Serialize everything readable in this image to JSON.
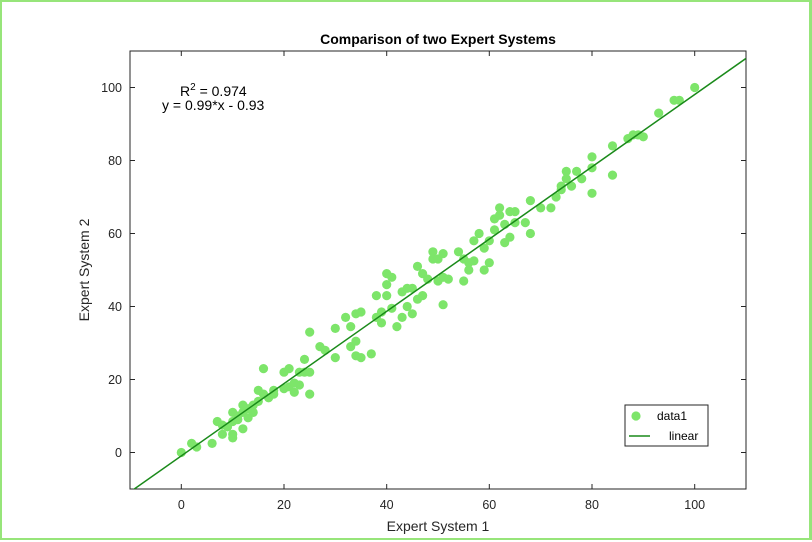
{
  "chart_data": {
    "type": "scatter",
    "title": "Comparison of two Expert Systems",
    "xlabel": "Expert System 1",
    "ylabel": "Expert System 2",
    "xlim": [
      -10,
      110
    ],
    "ylim": [
      -10,
      110
    ],
    "xticks": [
      0,
      20,
      40,
      60,
      80,
      100
    ],
    "yticks": [
      0,
      20,
      40,
      60,
      80,
      100
    ],
    "grid": false,
    "legend_placement": "bottom-right",
    "annotation": {
      "r2_prefix": "R",
      "r2_superscript": "2",
      "r2_value": " = 0.974",
      "equation": "y = 0.99*x - 0.93"
    },
    "series": [
      {
        "name": "data1",
        "type": "scatter",
        "color": "#7de56a",
        "points": [
          [
            0,
            0
          ],
          [
            2,
            2.5
          ],
          [
            3,
            1.5
          ],
          [
            6,
            2.5
          ],
          [
            7,
            8.5
          ],
          [
            8,
            5
          ],
          [
            8,
            7.5
          ],
          [
            9,
            7
          ],
          [
            10,
            4
          ],
          [
            10,
            5
          ],
          [
            10,
            8.5
          ],
          [
            10,
            11
          ],
          [
            11,
            9
          ],
          [
            11,
            10
          ],
          [
            12,
            6.5
          ],
          [
            12,
            11
          ],
          [
            12,
            13
          ],
          [
            13,
            9.5
          ],
          [
            13,
            12
          ],
          [
            14,
            11
          ],
          [
            14,
            13
          ],
          [
            15,
            14
          ],
          [
            15,
            17
          ],
          [
            16,
            23
          ],
          [
            16,
            16
          ],
          [
            17,
            15
          ],
          [
            18,
            16
          ],
          [
            18,
            17
          ],
          [
            20,
            17.5
          ],
          [
            20,
            22
          ],
          [
            21,
            23
          ],
          [
            21,
            18
          ],
          [
            22,
            16.5
          ],
          [
            22,
            19
          ],
          [
            23,
            18.5
          ],
          [
            23,
            22
          ],
          [
            24,
            25.5
          ],
          [
            24,
            22
          ],
          [
            25,
            16
          ],
          [
            25,
            22
          ],
          [
            25,
            33
          ],
          [
            27,
            29
          ],
          [
            28,
            28
          ],
          [
            30,
            26
          ],
          [
            30,
            34
          ],
          [
            32,
            37
          ],
          [
            33,
            34.5
          ],
          [
            33,
            29
          ],
          [
            34,
            26.5
          ],
          [
            34,
            38
          ],
          [
            34,
            30.5
          ],
          [
            35,
            38.5
          ],
          [
            35,
            26
          ],
          [
            37,
            27
          ],
          [
            38,
            37
          ],
          [
            38,
            43
          ],
          [
            39,
            38.5
          ],
          [
            39,
            35.5
          ],
          [
            40,
            43
          ],
          [
            40,
            46
          ],
          [
            40,
            49
          ],
          [
            41,
            48
          ],
          [
            41,
            39.5
          ],
          [
            42,
            34.5
          ],
          [
            43,
            37
          ],
          [
            43,
            44
          ],
          [
            44,
            45
          ],
          [
            44,
            40
          ],
          [
            45,
            38
          ],
          [
            45,
            45
          ],
          [
            46,
            51
          ],
          [
            46,
            42
          ],
          [
            47,
            49
          ],
          [
            47,
            43
          ],
          [
            48,
            47.5
          ],
          [
            49,
            53
          ],
          [
            49,
            55
          ],
          [
            50,
            53
          ],
          [
            50,
            47
          ],
          [
            51,
            48
          ],
          [
            51,
            40.5
          ],
          [
            51,
            54.5
          ],
          [
            52,
            47.5
          ],
          [
            54,
            55
          ],
          [
            55,
            53
          ],
          [
            55,
            47
          ],
          [
            56,
            50
          ],
          [
            56,
            52
          ],
          [
            57,
            52.5
          ],
          [
            57,
            58
          ],
          [
            58,
            60
          ],
          [
            59,
            56
          ],
          [
            59,
            50
          ],
          [
            60,
            52
          ],
          [
            60,
            58
          ],
          [
            61,
            64
          ],
          [
            61,
            61
          ],
          [
            62,
            65
          ],
          [
            62,
            67
          ],
          [
            63,
            62.5
          ],
          [
            63,
            57.5
          ],
          [
            64,
            59
          ],
          [
            64,
            66
          ],
          [
            65,
            63
          ],
          [
            65,
            66
          ],
          [
            67,
            63
          ],
          [
            68,
            69
          ],
          [
            68,
            60
          ],
          [
            70,
            67
          ],
          [
            72,
            67
          ],
          [
            73,
            70
          ],
          [
            74,
            72
          ],
          [
            74,
            73
          ],
          [
            75,
            75
          ],
          [
            75,
            77
          ],
          [
            76,
            73
          ],
          [
            77,
            77
          ],
          [
            78,
            75
          ],
          [
            80,
            78
          ],
          [
            80,
            81
          ],
          [
            80,
            71
          ],
          [
            84,
            76
          ],
          [
            84,
            84
          ],
          [
            87,
            86
          ],
          [
            88,
            87
          ],
          [
            89,
            87
          ],
          [
            90,
            86.5
          ],
          [
            93,
            93
          ],
          [
            96,
            96.5
          ],
          [
            97,
            96.5
          ],
          [
            100,
            100
          ]
        ]
      },
      {
        "name": "linear",
        "type": "line",
        "color": "#1a8a1a",
        "slope": 0.99,
        "intercept": -0.93
      }
    ]
  }
}
